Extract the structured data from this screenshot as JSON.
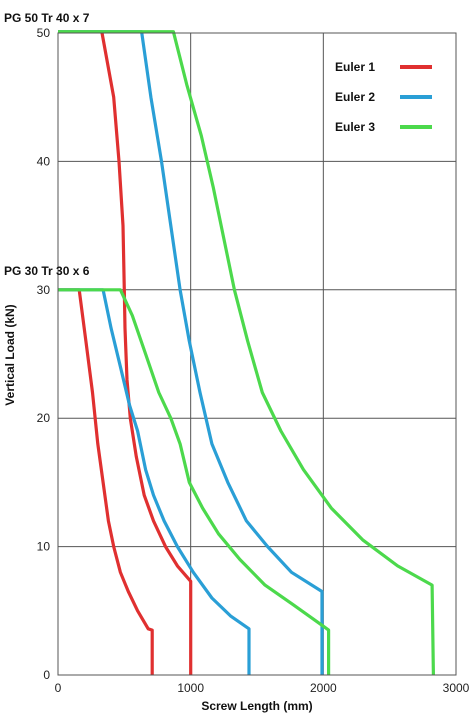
{
  "chart_data": {
    "type": "line",
    "title": "",
    "xlabel": "Screw Length (mm)",
    "ylabel": "Vertical Load (kN)",
    "xlim": [
      0,
      3000
    ],
    "ylim": [
      0,
      50
    ],
    "x_ticks": [
      "0",
      "1000",
      "2000",
      "3000"
    ],
    "y_ticks": [
      "0",
      "10",
      "20",
      "30",
      "40",
      "50"
    ],
    "grid": true,
    "legend_position": "top-right",
    "legend": [
      {
        "label": "Euler 1",
        "color": "#e03030"
      },
      {
        "label": "Euler 2",
        "color": "#2a9fd6"
      },
      {
        "label": "Euler 3",
        "color": "#4cd94c"
      }
    ],
    "annotations": [
      "PG 50 Tr 40 x 7",
      "PG 30 Tr 30 x 6"
    ],
    "series": [
      {
        "group": "PG 50 Tr 40 x 7",
        "legend_index": 0,
        "color": "#e03030",
        "x": [
          0,
          330,
          420,
          460,
          490,
          500,
          505,
          520,
          545,
          590,
          650,
          720,
          810,
          900,
          1000,
          1000
        ],
        "y": [
          50.1,
          50.1,
          45,
          40,
          35,
          30,
          27,
          23,
          20,
          17,
          14,
          12,
          10,
          8.5,
          7.3,
          0
        ]
      },
      {
        "group": "PG 50 Tr 40 x 7",
        "legend_index": 1,
        "color": "#2a9fd6",
        "x": [
          0,
          630,
          700,
          780,
          850,
          920,
          990,
          1070,
          1160,
          1280,
          1420,
          1580,
          1760,
          1990,
          1990
        ],
        "y": [
          50.1,
          50.1,
          45,
          40,
          35,
          30,
          26,
          22,
          18,
          15,
          12,
          10,
          8,
          6.5,
          0
        ]
      },
      {
        "group": "PG 50 Tr 40 x 7",
        "legend_index": 2,
        "color": "#4cd94c",
        "x": [
          0,
          870,
          970,
          1080,
          1170,
          1250,
          1330,
          1430,
          1540,
          1680,
          1850,
          2060,
          2300,
          2560,
          2820,
          2830
        ],
        "y": [
          50.1,
          50.1,
          46,
          42,
          38,
          34,
          30,
          26,
          22,
          19,
          16,
          13,
          10.5,
          8.5,
          7,
          0
        ]
      },
      {
        "group": "PG 30 Tr 30 x 6",
        "legend_index": 0,
        "color": "#e03030",
        "x": [
          0,
          160,
          210,
          260,
          300,
          340,
          380,
          420,
          470,
          530,
          600,
          680,
          710,
          710
        ],
        "y": [
          30,
          30,
          26,
          22,
          18,
          15,
          12,
          10,
          8,
          6.5,
          5,
          3.6,
          3.5,
          0
        ]
      },
      {
        "group": "PG 30 Tr 30 x 6",
        "legend_index": 1,
        "color": "#2a9fd6",
        "x": [
          0,
          340,
          400,
          470,
          540,
          600,
          660,
          720,
          800,
          900,
          1020,
          1160,
          1300,
          1440,
          1440
        ],
        "y": [
          30,
          30,
          27,
          24,
          21,
          19,
          16,
          14,
          12,
          10,
          8,
          6,
          4.6,
          3.6,
          0
        ]
      },
      {
        "group": "PG 30 Tr 30 x 6",
        "legend_index": 2,
        "color": "#4cd94c",
        "x": [
          0,
          470,
          560,
          660,
          760,
          850,
          920,
          990,
          1090,
          1210,
          1370,
          1560,
          1770,
          2000,
          2040,
          2040
        ],
        "y": [
          30,
          30,
          28,
          25,
          22,
          20,
          18,
          15,
          13,
          11,
          9,
          7,
          5.5,
          3.8,
          3.5,
          0
        ]
      }
    ]
  }
}
